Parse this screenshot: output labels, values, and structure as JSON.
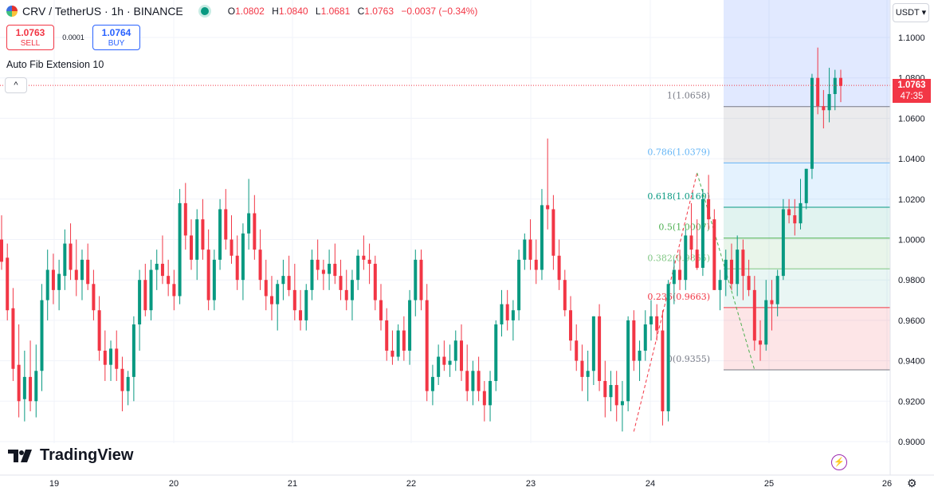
{
  "header": {
    "symbol": "CRV / TetherUS · 1h · BINANCE",
    "ohlc": [
      {
        "key": "O",
        "value": "1.0802"
      },
      {
        "key": "H",
        "value": "1.0840"
      },
      {
        "key": "L",
        "value": "1.0681"
      },
      {
        "key": "C",
        "value": "1.0763"
      }
    ],
    "change": "−0.0037 (−0.34%)"
  },
  "trade": {
    "sell_price": "1.0763",
    "sell_label": "SELL",
    "spread": "0.0001",
    "buy_price": "1.0764",
    "buy_label": "BUY"
  },
  "indicator_label": "Auto Fib Extension 10",
  "currency": "USDT",
  "current_price": {
    "value": "1.0763",
    "countdown": "47:35"
  },
  "colors": {
    "up": "#089981",
    "down": "#f23645"
  },
  "icons": {
    "collapse": "chevron-up-icon",
    "bolt": "lightning-icon",
    "settings": "gear-icon",
    "logo": "tradingview-logo-icon"
  },
  "chart_data": {
    "type": "candlestick",
    "ylim": [
      0.895,
      1.113
    ],
    "y_ticks": [
      "1.1000",
      "1.0800",
      "1.0600",
      "1.0400",
      "1.0200",
      "1.0000",
      "0.9800",
      "0.9600",
      "0.9400",
      "0.9200",
      "0.9000"
    ],
    "x_ticks": [
      "19",
      "20",
      "21",
      "22",
      "23",
      "24",
      "25",
      "26"
    ],
    "last_price": 1.0763,
    "fib_levels": [
      {
        "label": "1(1.0658)",
        "value": 1.0658
      },
      {
        "label": "0.786(1.0379)",
        "value": 1.0379
      },
      {
        "label": "0.618(1.0160)",
        "value": 1.016
      },
      {
        "label": "0.5(1.0007)",
        "value": 1.0007
      },
      {
        "label": "0.382(0.9855)",
        "value": 0.9855
      },
      {
        "label": "0.236(0.9663)",
        "value": 0.9663
      },
      {
        "label": "0(0.9355)",
        "value": 0.9355
      }
    ],
    "ohlc": [
      [
        1.0,
        1.012,
        0.985,
        0.989
      ],
      [
        0.991,
        0.998,
        0.96,
        0.965
      ],
      [
        0.966,
        0.976,
        0.93,
        0.936
      ],
      [
        0.938,
        0.958,
        0.912,
        0.92
      ],
      [
        0.921,
        0.945,
        0.91,
        0.932
      ],
      [
        0.932,
        0.95,
        0.915,
        0.92
      ],
      [
        0.92,
        0.948,
        0.912,
        0.935
      ],
      [
        0.935,
        0.978,
        0.925,
        0.97
      ],
      [
        0.97,
        0.995,
        0.96,
        0.985
      ],
      [
        0.985,
        0.993,
        0.968,
        0.975
      ],
      [
        0.975,
        0.99,
        0.965,
        0.983
      ],
      [
        0.982,
        1.005,
        0.975,
        0.998
      ],
      [
        0.998,
        1.008,
        0.98,
        0.985
      ],
      [
        0.985,
        1.0,
        0.972,
        0.98
      ],
      [
        0.98,
        0.995,
        0.97,
        0.99
      ],
      [
        0.99,
        0.998,
        0.975,
        0.978
      ],
      [
        0.978,
        0.985,
        0.96,
        0.965
      ],
      [
        0.965,
        0.972,
        0.94,
        0.945
      ],
      [
        0.945,
        0.955,
        0.93,
        0.938
      ],
      [
        0.938,
        0.95,
        0.93,
        0.946
      ],
      [
        0.946,
        0.955,
        0.93,
        0.936
      ],
      [
        0.936,
        0.942,
        0.915,
        0.925
      ],
      [
        0.925,
        0.935,
        0.918,
        0.932
      ],
      [
        0.932,
        0.962,
        0.92,
        0.958
      ],
      [
        0.958,
        0.985,
        0.945,
        0.98
      ],
      [
        0.98,
        0.988,
        0.962,
        0.965
      ],
      [
        0.965,
        0.99,
        0.96,
        0.985
      ],
      [
        0.985,
        0.995,
        0.975,
        0.988
      ],
      [
        0.988,
        1.002,
        0.978,
        0.982
      ],
      [
        0.982,
        0.99,
        0.972,
        0.978
      ],
      [
        0.978,
        0.985,
        0.965,
        0.972
      ],
      [
        0.972,
        1.025,
        0.968,
        1.018
      ],
      [
        1.018,
        1.028,
        0.995,
        1.002
      ],
      [
        1.002,
        1.01,
        0.985,
        0.99
      ],
      [
        0.99,
        1.015,
        0.98,
        1.01
      ],
      [
        1.01,
        1.02,
        0.99,
        0.995
      ],
      [
        0.995,
        1.005,
        0.965,
        0.97
      ],
      [
        0.97,
        0.995,
        0.965,
        0.99
      ],
      [
        0.99,
        1.02,
        0.985,
        1.015
      ],
      [
        1.015,
        1.025,
        0.995,
        1.0
      ],
      [
        1.0,
        1.012,
        0.988,
        0.992
      ],
      [
        0.992,
        1.002,
        0.975,
        0.98
      ],
      [
        0.98,
        1.008,
        0.97,
        1.003
      ],
      [
        1.003,
        1.03,
        0.995,
        1.013
      ],
      [
        1.013,
        1.022,
        0.99,
        0.995
      ],
      [
        0.995,
        1.005,
        0.975,
        0.98
      ],
      [
        0.98,
        0.99,
        0.965,
        0.972
      ],
      [
        0.972,
        0.982,
        0.96,
        0.968
      ],
      [
        0.968,
        0.98,
        0.955,
        0.978
      ],
      [
        0.978,
        0.99,
        0.97,
        0.982
      ],
      [
        0.982,
        0.992,
        0.972,
        0.975
      ],
      [
        0.975,
        0.988,
        0.96,
        0.965
      ],
      [
        0.965,
        0.975,
        0.955,
        0.96
      ],
      [
        0.96,
        0.978,
        0.955,
        0.975
      ],
      [
        0.975,
        0.995,
        0.97,
        0.99
      ],
      [
        0.99,
        1.0,
        0.98,
        0.985
      ],
      [
        0.985,
        0.99,
        0.975,
        0.983
      ],
      [
        0.983,
        0.995,
        0.975,
        0.988
      ],
      [
        0.988,
        0.998,
        0.978,
        0.982
      ],
      [
        0.982,
        0.99,
        0.97,
        0.975
      ],
      [
        0.975,
        0.985,
        0.965,
        0.97
      ],
      [
        0.97,
        0.985,
        0.96,
        0.98
      ],
      [
        0.98,
        0.995,
        0.975,
        0.992
      ],
      [
        0.992,
        1.002,
        0.985,
        0.99
      ],
      [
        0.99,
        0.998,
        0.978,
        0.988
      ],
      [
        0.988,
        0.992,
        0.965,
        0.97
      ],
      [
        0.97,
        0.978,
        0.955,
        0.96
      ],
      [
        0.96,
        0.966,
        0.94,
        0.945
      ],
      [
        0.945,
        0.955,
        0.938,
        0.942
      ],
      [
        0.942,
        0.958,
        0.94,
        0.955
      ],
      [
        0.955,
        0.962,
        0.94,
        0.945
      ],
      [
        0.945,
        0.975,
        0.938,
        0.97
      ],
      [
        0.97,
        0.995,
        0.962,
        0.99
      ],
      [
        0.99,
        0.995,
        0.965,
        0.97
      ],
      [
        0.97,
        0.978,
        0.92,
        0.925
      ],
      [
        0.925,
        0.938,
        0.918,
        0.932
      ],
      [
        0.932,
        0.948,
        0.928,
        0.942
      ],
      [
        0.942,
        0.95,
        0.935,
        0.938
      ],
      [
        0.938,
        0.948,
        0.932,
        0.94
      ],
      [
        0.94,
        0.955,
        0.935,
        0.95
      ],
      [
        0.95,
        0.958,
        0.93,
        0.935
      ],
      [
        0.935,
        0.948,
        0.92,
        0.925
      ],
      [
        0.925,
        0.94,
        0.918,
        0.935
      ],
      [
        0.935,
        0.942,
        0.92,
        0.925
      ],
      [
        0.925,
        0.93,
        0.91,
        0.918
      ],
      [
        0.918,
        0.935,
        0.91,
        0.93
      ],
      [
        0.93,
        0.96,
        0.925,
        0.958
      ],
      [
        0.958,
        0.975,
        0.952,
        0.968
      ],
      [
        0.968,
        0.975,
        0.955,
        0.96
      ],
      [
        0.96,
        0.97,
        0.95,
        0.965
      ],
      [
        0.965,
        0.995,
        0.96,
        0.99
      ],
      [
        0.99,
        1.003,
        0.985,
        1.0
      ],
      [
        1.0,
        1.01,
        0.985,
        0.99
      ],
      [
        0.99,
        1.0,
        0.978,
        0.985
      ],
      [
        0.985,
        1.025,
        0.98,
        1.017
      ],
      [
        1.017,
        1.05,
        1.005,
        1.015
      ],
      [
        1.015,
        1.022,
        0.985,
        0.992
      ],
      [
        0.992,
        1.0,
        0.975,
        0.98
      ],
      [
        0.98,
        0.985,
        0.962,
        0.965
      ],
      [
        0.965,
        0.972,
        0.945,
        0.95
      ],
      [
        0.95,
        0.958,
        0.935,
        0.94
      ],
      [
        0.94,
        0.948,
        0.925,
        0.932
      ],
      [
        0.932,
        0.945,
        0.92,
        0.935
      ],
      [
        0.935,
        0.962,
        0.928,
        0.962
      ],
      [
        0.962,
        0.968,
        0.925,
        0.93
      ],
      [
        0.93,
        0.94,
        0.912,
        0.922
      ],
      [
        0.922,
        0.935,
        0.915,
        0.928
      ],
      [
        0.928,
        0.935,
        0.91,
        0.918
      ],
      [
        0.918,
        0.93,
        0.905,
        0.92
      ],
      [
        0.92,
        0.962,
        0.915,
        0.96
      ],
      [
        0.96,
        0.965,
        0.935,
        0.94
      ],
      [
        0.94,
        0.95,
        0.93,
        0.945
      ],
      [
        0.945,
        0.965,
        0.94,
        0.958
      ],
      [
        0.958,
        0.97,
        0.95,
        0.962
      ],
      [
        0.962,
        0.968,
        0.95,
        0.955
      ],
      [
        0.955,
        0.965,
        0.908,
        0.915
      ],
      [
        0.915,
        0.98,
        0.91,
        0.978
      ],
      [
        0.978,
        0.99,
        0.968,
        0.985
      ],
      [
        0.985,
        0.995,
        0.975,
        0.98
      ],
      [
        0.98,
        1.005,
        0.975,
        1.002
      ],
      [
        1.002,
        1.018,
        0.99,
        0.995
      ],
      [
        0.995,
        1.01,
        0.985,
        0.986
      ],
      [
        0.986,
        1.025,
        0.982,
        1.02
      ],
      [
        1.02,
        1.032,
        1.005,
        1.01
      ],
      [
        1.01,
        1.015,
        0.975,
        0.975
      ],
      [
        0.975,
        0.985,
        0.965,
        0.98
      ],
      [
        0.98,
        0.995,
        0.972,
        0.99
      ],
      [
        0.99,
        0.998,
        0.975,
        0.978
      ],
      [
        0.978,
        1.002,
        0.972,
        0.995
      ],
      [
        0.995,
        1.0,
        0.97,
        0.982
      ],
      [
        0.982,
        0.99,
        0.972,
        0.975
      ],
      [
        0.975,
        0.982,
        0.945,
        0.95
      ],
      [
        0.95,
        0.96,
        0.94,
        0.948
      ],
      [
        0.948,
        0.98,
        0.945,
        0.97
      ],
      [
        0.97,
        0.98,
        0.955,
        0.968
      ],
      [
        0.968,
        0.985,
        0.962,
        0.982
      ],
      [
        0.982,
        1.02,
        0.98,
        1.015
      ],
      [
        1.015,
        1.02,
        1.008,
        1.012
      ],
      [
        1.012,
        1.02,
        1.002,
        1.008
      ],
      [
        1.008,
        1.03,
        1.005,
        1.018
      ],
      [
        1.018,
        1.035,
        1.015,
        1.035
      ],
      [
        1.035,
        1.082,
        1.03,
        1.08
      ],
      [
        1.08,
        1.095,
        1.062,
        1.066
      ],
      [
        1.066,
        1.074,
        1.055,
        1.064
      ],
      [
        1.064,
        1.085,
        1.058,
        1.072
      ],
      [
        1.072,
        1.084,
        1.064,
        1.08
      ],
      [
        1.08,
        1.084,
        1.068,
        1.076
      ]
    ]
  }
}
